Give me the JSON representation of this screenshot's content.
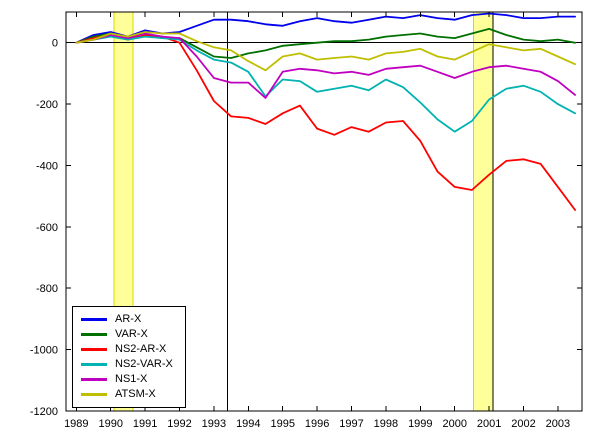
{
  "figure": {
    "background": "#ffffff"
  },
  "chart_data": {
    "type": "line",
    "title": "",
    "xlabel": "",
    "ylabel": "",
    "xlim": [
      1988.7,
      2003.7
    ],
    "ylim": [
      -1200,
      100
    ],
    "xticks": [
      1989,
      1990,
      1991,
      1992,
      1993,
      1994,
      1995,
      1996,
      1997,
      1998,
      1999,
      2000,
      2001,
      2002,
      2003
    ],
    "yticks": [
      0,
      -200,
      -400,
      -600,
      -800,
      -1000,
      -1200
    ],
    "grid": false,
    "legend_position": "southwest",
    "zero_line": 0,
    "vlines": [
      1993.4,
      2001.12
    ],
    "bands": [
      {
        "from": 1990.1,
        "to": 1990.65
      },
      {
        "from": 2000.55,
        "to": 2001.12
      }
    ],
    "band_fill": "#ffff99",
    "band_edge": "#d9d900",
    "axis_color": "#000000",
    "x": [
      1989,
      1989.5,
      1990,
      1990.5,
      1991,
      1991.5,
      1992,
      1992.5,
      1993,
      1993.5,
      1994,
      1994.5,
      1995,
      1995.5,
      1996,
      1996.5,
      1997,
      1997.5,
      1998,
      1998.5,
      1999,
      1999.5,
      2000,
      2000.5,
      2001,
      2001.5,
      2002,
      2002.5,
      2003,
      2003.5
    ],
    "series": [
      {
        "name": "AR-X",
        "color": "#0000ee",
        "values": [
          0,
          25,
          35,
          20,
          40,
          30,
          35,
          55,
          75,
          75,
          70,
          60,
          55,
          70,
          80,
          70,
          65,
          75,
          85,
          80,
          90,
          80,
          75,
          90,
          95,
          90,
          80,
          80,
          85,
          85
        ]
      },
      {
        "name": "VAR-X",
        "color": "#007000",
        "values": [
          0,
          20,
          30,
          10,
          25,
          15,
          15,
          -15,
          -45,
          -50,
          -35,
          -25,
          -10,
          -5,
          0,
          5,
          5,
          10,
          20,
          25,
          30,
          20,
          15,
          30,
          45,
          25,
          10,
          5,
          10,
          0
        ]
      },
      {
        "name": "NS2-AR-X",
        "color": "#ff0000",
        "values": [
          0,
          15,
          25,
          10,
          25,
          20,
          0,
          -90,
          -190,
          -240,
          -245,
          -265,
          -230,
          -205,
          -280,
          -300,
          -275,
          -290,
          -260,
          -255,
          -320,
          -420,
          -470,
          -480,
          -430,
          -385,
          -380,
          -395,
          -470,
          -545
        ]
      },
      {
        "name": "NS2-VAR-X",
        "color": "#00b2b2",
        "values": [
          0,
          10,
          20,
          10,
          20,
          15,
          10,
          -25,
          -55,
          -65,
          -95,
          -175,
          -120,
          -125,
          -160,
          -150,
          -140,
          -155,
          -120,
          -145,
          -195,
          -250,
          -290,
          -255,
          -185,
          -150,
          -140,
          -160,
          -200,
          -230
        ]
      },
      {
        "name": "NS1-X",
        "color": "#c000c0",
        "values": [
          0,
          10,
          25,
          15,
          30,
          20,
          15,
          -45,
          -115,
          -130,
          -130,
          -180,
          -95,
          -85,
          -90,
          -100,
          -95,
          -105,
          -85,
          -80,
          -75,
          -95,
          -115,
          -95,
          -80,
          -75,
          -85,
          -95,
          -125,
          -170
        ]
      },
      {
        "name": "ATSM-X",
        "color": "#bfbf00",
        "values": [
          0,
          10,
          30,
          20,
          35,
          30,
          30,
          5,
          -15,
          -25,
          -60,
          -90,
          -45,
          -35,
          -55,
          -50,
          -45,
          -55,
          -35,
          -30,
          -20,
          -45,
          -55,
          -30,
          -5,
          -15,
          -25,
          -20,
          -45,
          -70
        ]
      }
    ]
  }
}
